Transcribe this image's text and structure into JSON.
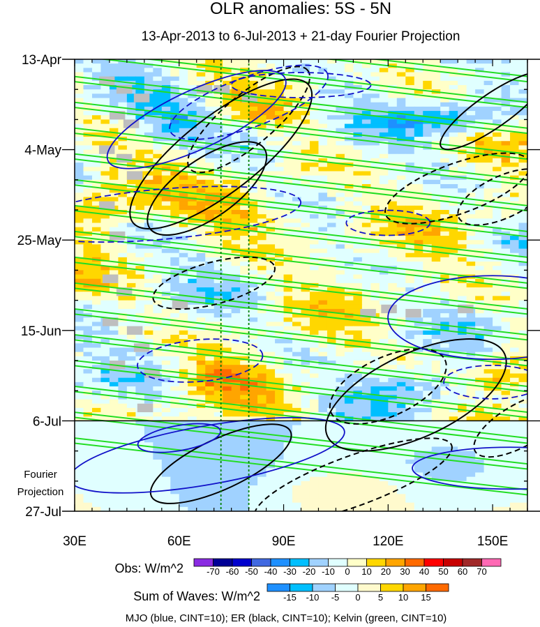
{
  "chart_data": {
    "type": "heatmap",
    "title": "OLR anomalies: 5S - 5N",
    "subtitle": "13-Apr-2013 to 6-Jul-2013 + 21-day Fourier Projection",
    "x_axis": {
      "range": [
        30,
        160
      ],
      "ticks": [
        30,
        60,
        90,
        120,
        150
      ],
      "tick_labels": [
        "30E",
        "60E",
        "90E",
        "120E",
        "150E"
      ]
    },
    "y_axis": {
      "range": [
        "13-Apr",
        "27-Jul"
      ],
      "ticks": [
        0,
        21,
        42,
        63,
        84,
        105
      ],
      "tick_labels": [
        "13-Apr",
        "4-May",
        "25-May",
        "15-Jun",
        "6-Jul",
        "27-Jul"
      ],
      "reversed": true
    },
    "projection_label": [
      "Fourier",
      "Projection"
    ],
    "vertical_reference_lines_lon": [
      72,
      80
    ],
    "observation_end_day": 84,
    "obs_colorbar": {
      "label": "Obs: W/m^2",
      "levels": [
        "-70",
        "-60",
        "-50",
        "-40",
        "-30",
        "-20",
        "-10",
        "0",
        "10",
        "20",
        "30",
        "40",
        "50",
        "60",
        "70"
      ],
      "colors": [
        "#8a2be2",
        "#000096",
        "#0000cd",
        "#4169e1",
        "#1e90ff",
        "#00bfff",
        "#a0d2ff",
        "#e0ffff",
        "#ffffc8",
        "#ffd700",
        "#ffa500",
        "#ff6a00",
        "#ff0000",
        "#c80000",
        "#a02828",
        "#ff69b4"
      ]
    },
    "waves_colorbar": {
      "label": "Sum of Waves: W/m^2",
      "levels": [
        "-15",
        "-10",
        "-5",
        "0",
        "5",
        "10",
        "15"
      ],
      "colors": [
        "#1e90ff",
        "#00bfff",
        "#a0d2ff",
        "#e0ffff",
        "#fffacd",
        "#ffd700",
        "#ffa500",
        "#ff6a00"
      ]
    },
    "contour_caption": "MJO (blue, CINT=10); ER (black, CINT=10); Kelvin (green, CINT=10)",
    "contour_colors": {
      "mjo": "#1010c8",
      "er": "#000000",
      "kelvin": "#22dd22",
      "reference_lines": "#008000"
    }
  }
}
